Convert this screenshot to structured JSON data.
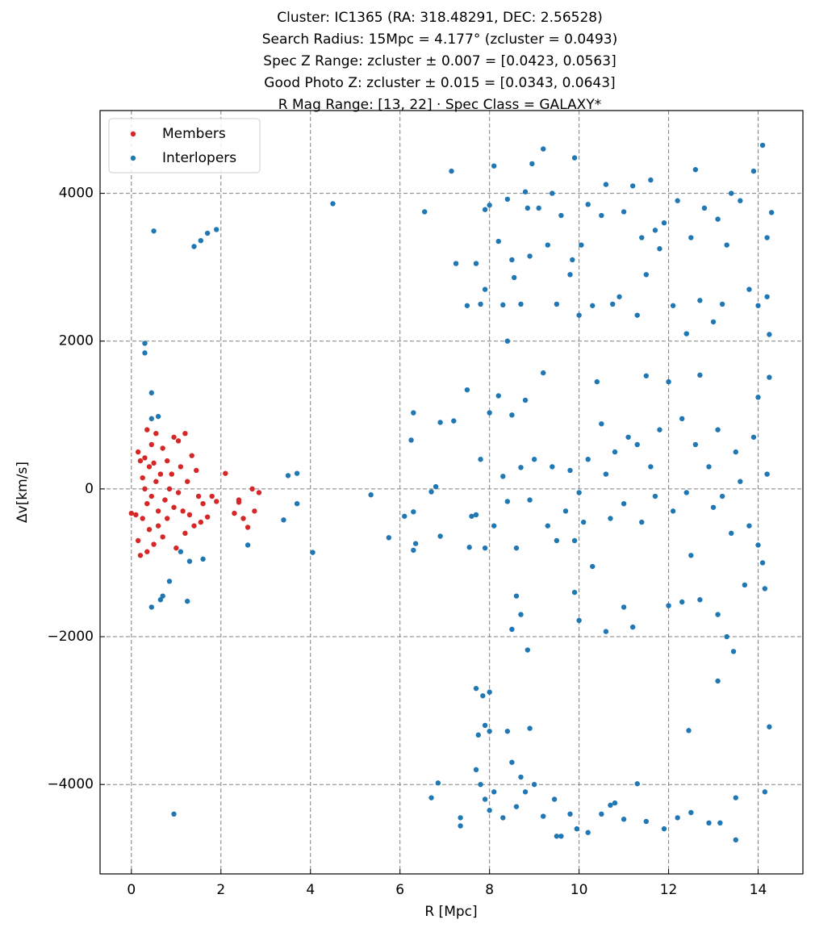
{
  "chart_data": {
    "type": "scatter",
    "title_lines": [
      "Cluster: IC1365 (RA: 318.48291, DEC: 2.56528)",
      "Search Radius: 15Mpc = 4.177° (zcluster = 0.0493)",
      "Spec Z Range: zcluster ± 0.007 = [0.0423, 0.0563]",
      "Good Photo Z: zcluster ± 0.015 = [0.0343, 0.0643]",
      "R Mag Range: [13, 22] · Spec Class = GALAXY*"
    ],
    "x_label": "R [Mpc]",
    "y_label": "Δv[km/s]",
    "xlim": [
      -0.7,
      15.0
    ],
    "ylim": [
      -5210,
      5120
    ],
    "xticks": [
      0,
      2,
      4,
      6,
      8,
      10,
      12,
      14
    ],
    "yticks": [
      {
        "value": -4000,
        "label": "−4000"
      },
      {
        "value": -2000,
        "label": "−2000"
      },
      0,
      2000,
      4000
    ],
    "grid": true,
    "legend": "upper-left",
    "series": [
      {
        "name": "Members",
        "color": "#d62728",
        "x": [
          0.0,
          0.1,
          0.15,
          0.15,
          0.2,
          0.2,
          0.25,
          0.25,
          0.3,
          0.3,
          0.35,
          0.35,
          0.4,
          0.4,
          0.45,
          0.45,
          0.5,
          0.5,
          0.55,
          0.55,
          0.6,
          0.6,
          0.65,
          0.7,
          0.7,
          0.75,
          0.8,
          0.8,
          0.85,
          0.9,
          0.95,
          0.95,
          1.0,
          1.05,
          1.05,
          1.1,
          1.15,
          1.2,
          1.2,
          1.25,
          1.3,
          1.35,
          1.4,
          1.45,
          1.5,
          1.55,
          1.7,
          1.8,
          1.9,
          2.1,
          2.3,
          2.4,
          2.5,
          2.6,
          2.7,
          2.75,
          2.85,
          2.4,
          1.6,
          0.35
        ],
        "values": [
          -330,
          -350,
          500,
          -700,
          -900,
          380,
          150,
          -400,
          0,
          420,
          800,
          -200,
          300,
          -550,
          600,
          -100,
          350,
          -750,
          750,
          100,
          -500,
          -300,
          200,
          550,
          -650,
          -150,
          380,
          -400,
          0,
          200,
          700,
          -250,
          -800,
          650,
          -50,
          300,
          -300,
          750,
          -600,
          100,
          -350,
          450,
          -500,
          250,
          -100,
          -450,
          -380,
          -100,
          -170,
          210,
          -330,
          -180,
          -400,
          -520,
          0,
          -300,
          -50,
          -150,
          -200,
          -850
        ]
      },
      {
        "name": "Interlopers",
        "color": "#1f77b4",
        "x": [
          0.3,
          0.3,
          0.5,
          1.4,
          1.55,
          1.7,
          1.9,
          0.45,
          0.6,
          0.45,
          0.45,
          0.7,
          0.65,
          0.85,
          1.25,
          1.1,
          1.3,
          1.6,
          2.6,
          3.4,
          3.5,
          3.7,
          3.7,
          4.05,
          4.5,
          5.35,
          5.75,
          6.1,
          6.3,
          6.3,
          6.25,
          6.35,
          6.3,
          6.55,
          6.7,
          6.8,
          6.9,
          6.9,
          7.15,
          7.2,
          7.25,
          7.5,
          7.5,
          7.55,
          7.6,
          0.95,
          6.7,
          6.85,
          7.7,
          7.8,
          7.9,
          7.9,
          8.0,
          8.1,
          8.2,
          8.3,
          8.4,
          8.5,
          8.55,
          8.7,
          8.8,
          8.85,
          8.9,
          8.95,
          9.1,
          9.2,
          9.3,
          9.4,
          9.5,
          9.6,
          9.8,
          9.85,
          9.9,
          10.0,
          10.05,
          10.2,
          10.3,
          10.5,
          10.6,
          10.75,
          10.9,
          11.0,
          11.2,
          11.3,
          11.4,
          11.5,
          11.6,
          11.7,
          11.8,
          11.9,
          12.1,
          12.2,
          12.4,
          12.5,
          12.6,
          12.7,
          12.8,
          13.0,
          13.1,
          13.2,
          13.3,
          13.4,
          13.6,
          13.8,
          13.9,
          14.0,
          14.1,
          14.2,
          14.25,
          14.3,
          14.2,
          8.4,
          7.7,
          7.8,
          7.9,
          8.0,
          8.1,
          8.2,
          8.3,
          8.4,
          8.5,
          8.6,
          8.7,
          8.8,
          8.9,
          9.0,
          9.2,
          9.3,
          9.4,
          9.5,
          9.7,
          9.8,
          9.9,
          10.0,
          10.1,
          10.2,
          10.3,
          10.4,
          10.5,
          10.6,
          10.7,
          10.8,
          11.0,
          11.1,
          11.3,
          11.4,
          11.5,
          11.6,
          11.7,
          11.8,
          12.0,
          12.1,
          12.3,
          12.4,
          12.5,
          12.6,
          12.7,
          12.9,
          13.0,
          13.1,
          13.2,
          13.4,
          13.5,
          13.6,
          13.8,
          13.9,
          14.0,
          14.1,
          14.15,
          14.2,
          14.25,
          14.0,
          13.7,
          12.0,
          11.0,
          10.0,
          9.9,
          10.6,
          11.2,
          8.6,
          8.7,
          8.85,
          8.5,
          13.1,
          13.3,
          13.45,
          13.1,
          12.3,
          12.7,
          7.7,
          7.75,
          7.85,
          8.0,
          7.9,
          8.0,
          7.7,
          7.8,
          7.9,
          8.0,
          8.1,
          8.3,
          8.4,
          8.5,
          8.6,
          8.7,
          8.9,
          9.0,
          9.2,
          9.45,
          9.5,
          9.6,
          9.8,
          9.95,
          10.2,
          10.5,
          10.7,
          10.8,
          11.0,
          11.3,
          11.5,
          11.9,
          12.2,
          12.45,
          12.5,
          12.9,
          13.15,
          13.5,
          13.5,
          14.15,
          14.25,
          7.35,
          7.35,
          8.8
        ],
        "values": [
          1970,
          1840,
          3490,
          3280,
          3360,
          3460,
          3510,
          1300,
          980,
          950,
          -1600,
          -1450,
          -1500,
          -1250,
          -1520,
          -850,
          -980,
          -950,
          -760,
          -420,
          180,
          210,
          -200,
          -860,
          3860,
          -80,
          -660,
          -370,
          -310,
          1030,
          660,
          -740,
          -830,
          3750,
          -40,
          30,
          900,
          -640,
          4300,
          920,
          3050,
          1340,
          2480,
          -790,
          -370,
          -4400,
          -4180,
          -3980,
          3050,
          2500,
          3780,
          2700,
          3840,
          4370,
          3350,
          2490,
          3920,
          3100,
          2860,
          2500,
          4020,
          3800,
          3150,
          4400,
          3800,
          4600,
          3300,
          4000,
          2500,
          3700,
          2900,
          3100,
          4480,
          2350,
          3300,
          3850,
          2480,
          3700,
          4120,
          2500,
          2600,
          3750,
          4100,
          2350,
          3400,
          2900,
          4180,
          3500,
          3250,
          3600,
          2480,
          3900,
          2100,
          3400,
          4320,
          2550,
          3800,
          2260,
          3650,
          2500,
          3300,
          4000,
          3900,
          2700,
          4300,
          2480,
          4650,
          3400,
          2090,
          3740,
          2600,
          2000,
          -350,
          400,
          -800,
          1030,
          -500,
          1260,
          170,
          -170,
          1000,
          -800,
          290,
          1200,
          -150,
          400,
          1570,
          -500,
          300,
          -700,
          -300,
          250,
          -700,
          -50,
          -450,
          400,
          -1050,
          1450,
          880,
          200,
          -400,
          500,
          -200,
          700,
          600,
          -450,
          1530,
          300,
          -100,
          800,
          1450,
          -300,
          950,
          -50,
          -900,
          600,
          1540,
          300,
          -250,
          800,
          -100,
          -600,
          500,
          100,
          -500,
          700,
          1240,
          -1000,
          -1350,
          200,
          1510,
          -760,
          -1300,
          -1580,
          -1600,
          -1780,
          -1400,
          -1930,
          -1870,
          -1450,
          -1700,
          -2180,
          -1900,
          -1700,
          -2000,
          -2200,
          -2600,
          -1530,
          -1500,
          -2700,
          -3330,
          -2800,
          -2750,
          -3200,
          -3280,
          -3800,
          -4000,
          -4200,
          -4350,
          -4100,
          -4450,
          -3280,
          -3700,
          -4300,
          -3900,
          -3240,
          -4000,
          -4430,
          -4200,
          -4700,
          -4700,
          -4400,
          -4600,
          -4650,
          -4400,
          -4280,
          -4250,
          -4470,
          -3990,
          -4500,
          -4600,
          -4450,
          -3270,
          -4380,
          -4520,
          -4520,
          -4180,
          -4750,
          -4100,
          -3220,
          -4450,
          -4560,
          -4100
        ]
      }
    ]
  }
}
